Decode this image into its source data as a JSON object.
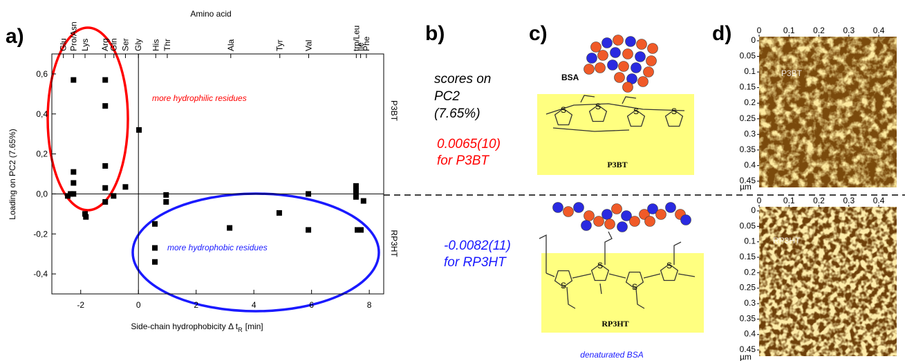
{
  "chart_data": {
    "type": "scatter",
    "panel_label": "a)",
    "xlabel": "Side-chain hydrophobicity Δ t",
    "xlabel_sub": "R",
    "xlabel_tail": "[min]",
    "ylabel": "Loading on PC2 (7.65%)",
    "xlim": [
      -3,
      8.5
    ],
    "ylim": [
      -0.5,
      0.7
    ],
    "xticks": [
      -2,
      0,
      2,
      4,
      6,
      8
    ],
    "yticks": [
      {
        "value": -0.4,
        "label": "-0,4"
      },
      {
        "value": -0.2,
        "label": "-0,2"
      },
      {
        "value": 0,
        "label": "0,0"
      },
      {
        "value": 0.2,
        "label": "0,2"
      },
      {
        "value": 0.4,
        "label": "0,4"
      },
      {
        "value": 0.6,
        "label": "0,6"
      }
    ],
    "color": "#000000",
    "x": [
      -2.25,
      -2.25,
      -2.25,
      -2.25,
      -2.35,
      -2.45,
      -1.85,
      -1.82,
      -1.15,
      -1.15,
      -1.15,
      -1.15,
      -1.15,
      -0.86,
      -0.45,
      0.02,
      0.57,
      0.57,
      0.57,
      0.96,
      0.96,
      3.16,
      4.88,
      5.89,
      5.89,
      7.54,
      7.54,
      7.54,
      7.59,
      7.71,
      7.8
    ],
    "values": [
      0.57,
      0.11,
      0.055,
      0.0,
      0.0,
      -0.01,
      -0.1,
      -0.115,
      0.57,
      0.44,
      0.14,
      0.03,
      -0.04,
      -0.01,
      0.035,
      0.32,
      -0.15,
      -0.27,
      -0.34,
      -0.005,
      -0.04,
      -0.17,
      -0.095,
      0.0,
      -0.18,
      0.04,
      0.015,
      -0.015,
      -0.18,
      -0.18,
      -0.035
    ],
    "top_axis": {
      "title": "Amino acid",
      "ticks": [
        {
          "value": -2.6,
          "label": "Glu"
        },
        {
          "value": -2.25,
          "label": "Pro/Asn"
        },
        {
          "value": -1.85,
          "label": "Lys"
        },
        {
          "value": -1.15,
          "label": "Arg"
        },
        {
          "value": -0.85,
          "label": "Gln"
        },
        {
          "value": -0.45,
          "label": "Ser"
        },
        {
          "value": 0,
          "label": "Gly"
        },
        {
          "value": 0.6,
          "label": "His"
        },
        {
          "value": 1.0,
          "label": "Thr"
        },
        {
          "value": 3.2,
          "label": "Ala"
        },
        {
          "value": 4.9,
          "label": "Tyr"
        },
        {
          "value": 5.9,
          "label": "Val"
        },
        {
          "value": 7.55,
          "label": "trp/Leu"
        },
        {
          "value": 7.7,
          "label": "Ile"
        },
        {
          "value": 7.9,
          "label": "Phe"
        }
      ]
    },
    "side_labels": [
      "P3BT",
      "RP3HT"
    ],
    "annotations": [
      {
        "text": "more hydrophilic  residues",
        "color": "#ff0000"
      },
      {
        "text": "more hydrophobic  residues",
        "color": "#1a1aff"
      }
    ]
  },
  "panel_b": {
    "panel_label": "b)",
    "scores_lines": [
      "scores on",
      "PC2",
      "(7.65%)"
    ],
    "p3bt_lines": [
      "0.0065(10)",
      "for P3BT"
    ],
    "p3bt_color": "#ff0000",
    "rp3ht_lines": [
      "-0.0082(11)",
      "for RP3HT"
    ],
    "rp3ht_color": "#1a1aff"
  },
  "panel_c": {
    "panel_label": "c)",
    "protein": "BSA",
    "ring_atom": "S",
    "polymer_top": "P3BT",
    "polymer_bottom": "RP3HT",
    "caption": "denaturated BSA"
  },
  "panel_d": {
    "panel_label": "d)",
    "labels": [
      "P3BT",
      "RP3HT"
    ],
    "xticks": [
      0,
      0.1,
      0.2,
      0.3,
      0.4
    ],
    "yticks": [
      0,
      0.05,
      0.1,
      0.15,
      0.2,
      0.25,
      0.3,
      0.35,
      0.4,
      0.45
    ],
    "unit": "µm"
  }
}
